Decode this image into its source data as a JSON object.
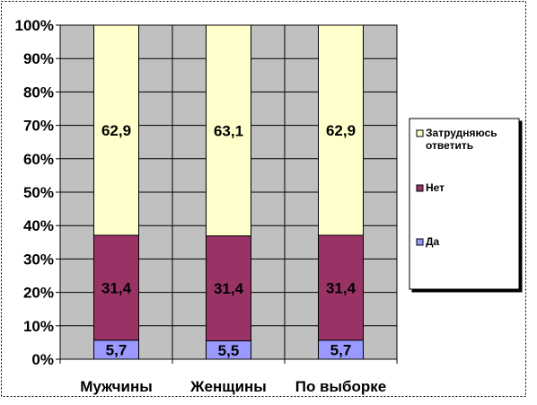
{
  "chart_data": {
    "type": "bar",
    "stacked": true,
    "percent_stacked": true,
    "categories": [
      "Мужчины",
      "Женщины",
      "По выборке"
    ],
    "series": [
      {
        "name": "Да",
        "values": [
          5.7,
          5.5,
          5.7
        ],
        "color": "#9999ff",
        "labels": [
          "5,7",
          "5,5",
          "5,7"
        ]
      },
      {
        "name": "Нет",
        "values": [
          31.4,
          31.4,
          31.4
        ],
        "color": "#993366",
        "labels": [
          "31,4",
          "31,4",
          "31,4"
        ]
      },
      {
        "name": "Затрудняюсь ответить",
        "values": [
          62.9,
          63.1,
          62.9
        ],
        "color": "#ffffcc",
        "labels": [
          "62,9",
          "63,1",
          "62,9"
        ]
      }
    ],
    "y_ticks": [
      "0%",
      "10%",
      "20%",
      "30%",
      "40%",
      "50%",
      "60%",
      "70%",
      "80%",
      "90%",
      "100%"
    ],
    "ylim": [
      0,
      100
    ],
    "grid": true,
    "plot_background": "#c0c0c0",
    "legend": {
      "placement": "right",
      "items": [
        {
          "label_lines": [
            "Затрудняюсь",
            "ответить"
          ],
          "color": "#ffffcc"
        },
        {
          "label_lines": [
            "Нет"
          ],
          "color": "#993366"
        },
        {
          "label_lines": [
            "Да"
          ],
          "color": "#9999ff"
        }
      ]
    }
  }
}
